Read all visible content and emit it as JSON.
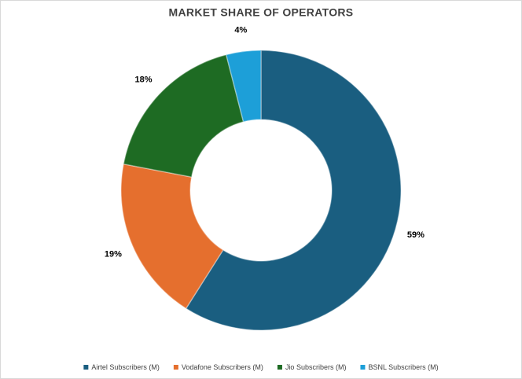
{
  "chart_data": {
    "type": "doughnut",
    "title": "MARKET SHARE OF OPERATORS",
    "categories": [
      "Airtel Subscribers (M)",
      "Vodafone Subscribers (M)",
      "Jio Subscribers (M)",
      "BSNL Subscribers (M)"
    ],
    "values": [
      59,
      19,
      18,
      4
    ],
    "value_labels": [
      "59%",
      "19%",
      "18%",
      "4%"
    ],
    "colors": [
      "#1a5e80",
      "#e56f2e",
      "#1e6b23",
      "#1d9fd8"
    ],
    "legend": "bottom"
  }
}
